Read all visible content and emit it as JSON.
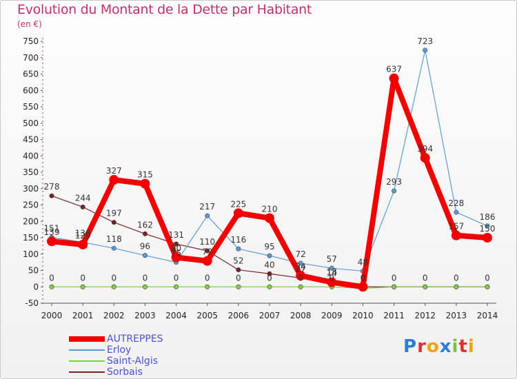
{
  "title": "Evolution du Montant de la Dette par Habitant",
  "unit": "(en €)",
  "logo": "Proxiti",
  "colors": {
    "title": "#c0306a",
    "legend_text": "#4b4fd6"
  },
  "chart_data": {
    "type": "line",
    "title": "Evolution du Montant de la Dette par Habitant",
    "subtitle": "(en €)",
    "x": [
      2000,
      2001,
      2002,
      2003,
      2004,
      2005,
      2006,
      2007,
      2008,
      2009,
      2010,
      2011,
      2012,
      2013,
      2014
    ],
    "ylim": [
      -50,
      750
    ],
    "yticks": [
      -50,
      0,
      50,
      100,
      150,
      200,
      250,
      300,
      350,
      400,
      450,
      500,
      550,
      600,
      650,
      700,
      750
    ],
    "grid": false,
    "legend_position": "bottom-left",
    "series": [
      {
        "name": "AUTREPPES",
        "color": "#f20000",
        "width": 8,
        "marker": 7,
        "values": [
          139,
          129,
          327,
          315,
          90,
          79,
          225,
          210,
          34,
          14,
          0,
          637,
          394,
          157,
          150
        ],
        "labels": [
          "139",
          "129",
          "327",
          "315",
          "90",
          "79",
          "225",
          "210",
          "34",
          "14",
          "0",
          "637",
          "394",
          "157",
          "150"
        ]
      },
      {
        "name": "Erloy",
        "color": "#5b9bd5",
        "width": 1.2,
        "marker": 3.2,
        "values": [
          151,
          136,
          118,
          96,
          75,
          217,
          116,
          95,
          72,
          57,
          48,
          293,
          723,
          228,
          186
        ],
        "labels": [
          "151",
          "136",
          "118",
          "96",
          "75",
          "217",
          "116",
          "95",
          "72",
          "57",
          "48",
          "293",
          "723",
          "228",
          "186"
        ]
      },
      {
        "name": "Saint-Algis",
        "color": "#7fd13b",
        "width": 1.2,
        "marker": 3.2,
        "values": [
          0,
          0,
          0,
          0,
          0,
          0,
          0,
          0,
          0,
          0,
          -5,
          0,
          0,
          0,
          0
        ],
        "labels": [
          "0",
          "0",
          "0",
          "0",
          "0",
          "0",
          "0",
          "0",
          "0",
          "0",
          "",
          "",
          "",
          "",
          ""
        ]
      },
      {
        "name": "Sorbais",
        "color": "#7a2222",
        "width": 1.2,
        "marker": 3.2,
        "values": [
          278,
          244,
          197,
          162,
          131,
          110,
          52,
          40,
          27,
          18,
          0,
          0,
          0,
          0,
          0
        ],
        "labels": [
          "278",
          "244",
          "197",
          "162",
          "131",
          "110",
          "52",
          "40",
          "27",
          "18",
          "0",
          "0",
          "0",
          "0",
          "0"
        ]
      }
    ]
  }
}
